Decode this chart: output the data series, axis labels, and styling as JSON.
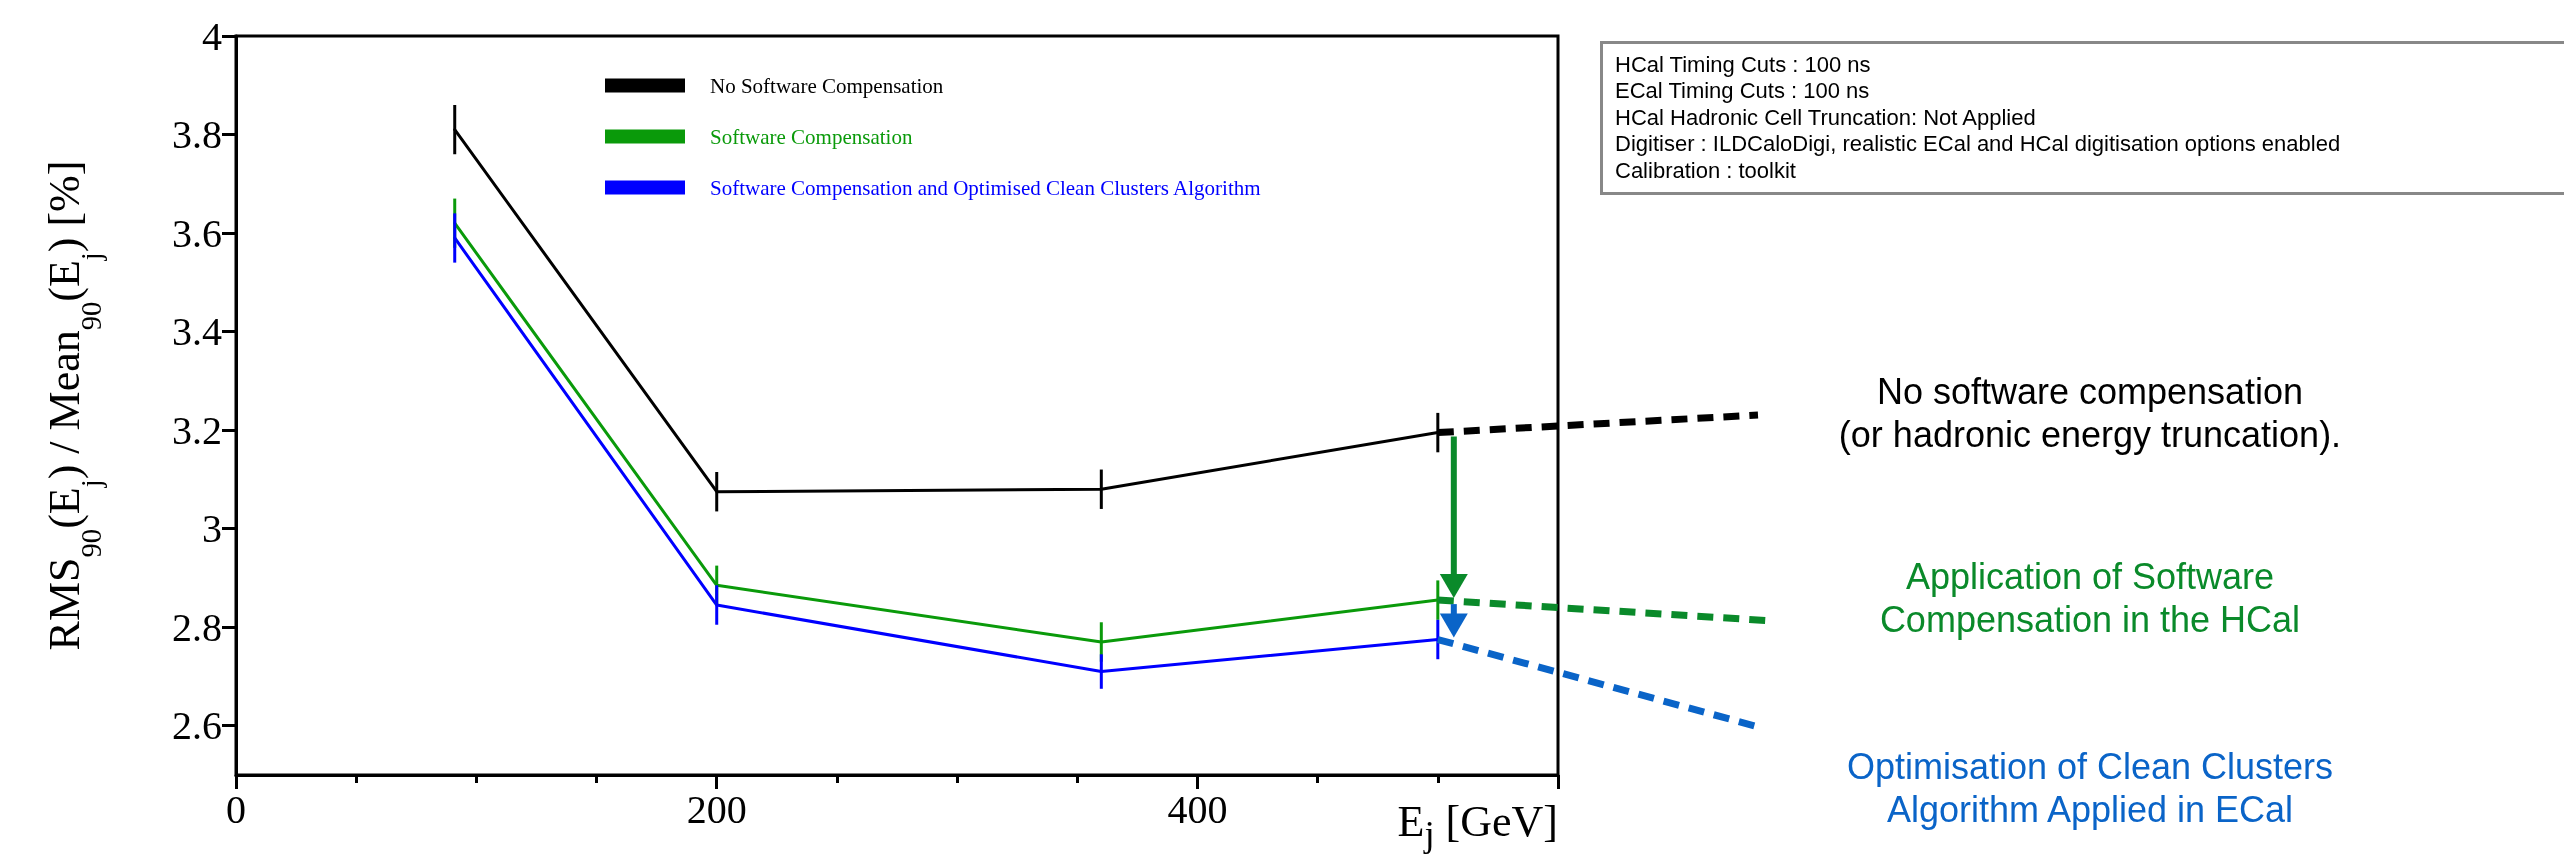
{
  "chart_data": {
    "type": "line",
    "xlabel": "E$_{j}$ [GeV]",
    "ylabel": "RMS$_{90}$(E$_{j}$) / Mean$_{90}$(E$_{j}$) [%]",
    "x": [
      91,
      200,
      360,
      500
    ],
    "xlim": [
      0,
      550
    ],
    "xticks": [
      0,
      200,
      400
    ],
    "ylim": [
      2.5,
      4
    ],
    "yticks": [
      2.6,
      2.8,
      3,
      3.2,
      3.4,
      3.6,
      3.8,
      4
    ],
    "grid": false,
    "legend": "top",
    "marker": "none",
    "line_style": "solid",
    "series": [
      {
        "name": "No Software Compensation",
        "color": "#000000",
        "values": [
          3.81,
          3.075,
          3.08,
          3.195
        ],
        "errors": [
          0.05,
          0.04,
          0.04,
          0.04
        ]
      },
      {
        "name": "Software Compensation",
        "color": "#0a9a0a",
        "values": [
          3.62,
          2.885,
          2.77,
          2.855
        ],
        "errors": [
          0.05,
          0.04,
          0.04,
          0.04
        ]
      },
      {
        "name": "Software Compensation and Optimised Clean Clusters Algorithm",
        "color": "#0000ff",
        "values": [
          3.59,
          2.845,
          2.71,
          2.775
        ],
        "errors": [
          0.05,
          0.04,
          0.035,
          0.04
        ]
      }
    ],
    "annotations": [
      "HCal Timing Cuts : 100 ns\nECal Timing Cuts : 100 ns\nHCal Hadronic Cell Truncation: Not Applied\nDigitiser : ILDCaloDigi, realistic ECal and HCal digitisation options enabled\nCalibration : toolkit",
      "No software compensation\n(or hadronic energy truncation).",
      "Application of Software\nCompensation in the HCal",
      "Optimisation of Clean Clusters\nAlgorithm Applied in ECal"
    ]
  }
}
